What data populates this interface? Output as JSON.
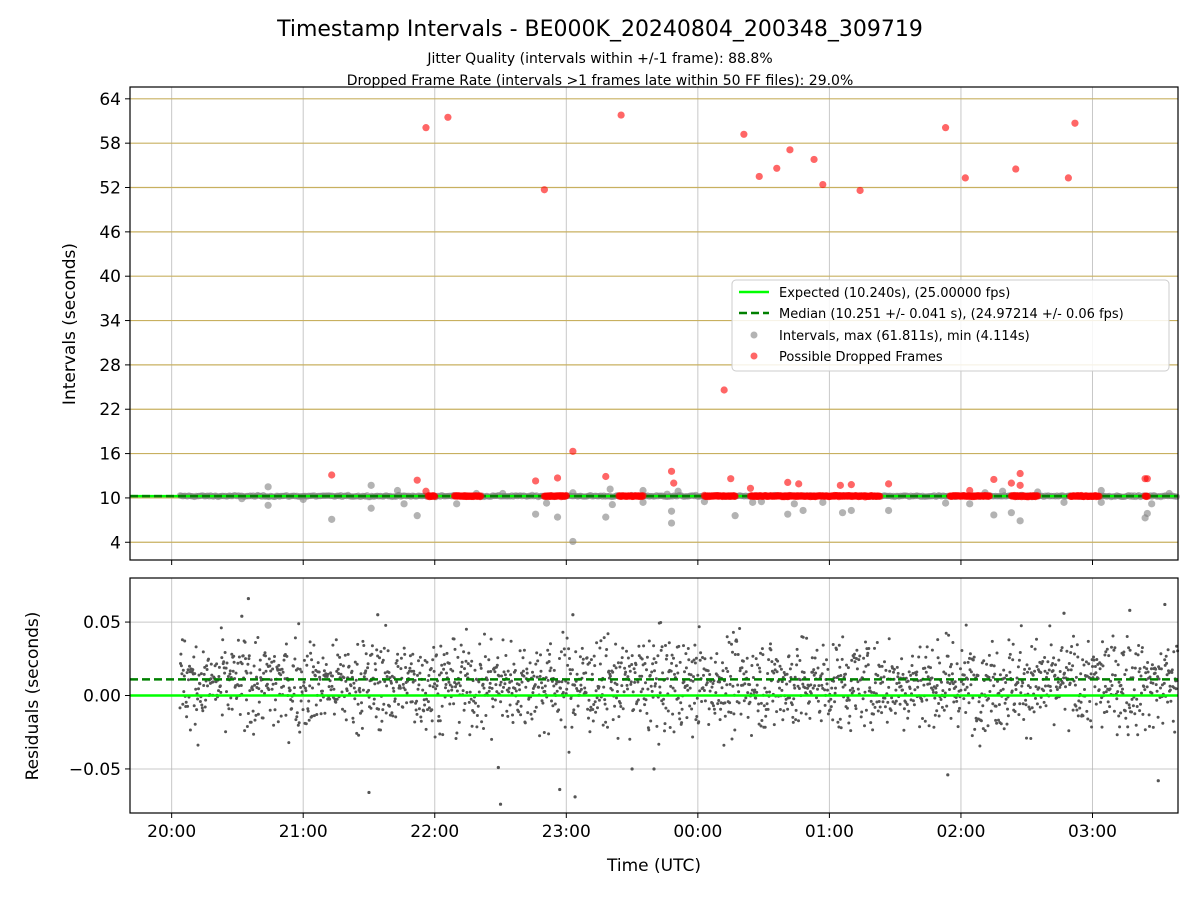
{
  "chart_data": {
    "title": "Timestamp Intervals - BE000K_20240804_200348_309719",
    "subtitle_1": "Jitter Quality (intervals within +/-1 frame): 88.8%",
    "subtitle_2": "Dropped Frame Rate (intervals >1 frames late within 50 FF files): 29.0%",
    "xlabel": "Time (UTC)",
    "x_range": [
      "2024-08-04T19:41",
      "2024-08-05T03:39"
    ],
    "x_ticks": [
      {
        "time": "2024-08-04T20:00",
        "label": "20:00"
      },
      {
        "time": "2024-08-04T21:00",
        "label": "21:00"
      },
      {
        "time": "2024-08-04T22:00",
        "label": "22:00"
      },
      {
        "time": "2024-08-04T23:00",
        "label": "23:00"
      },
      {
        "time": "2024-08-05T00:00",
        "label": "00:00"
      },
      {
        "time": "2024-08-05T01:00",
        "label": "01:00"
      },
      {
        "time": "2024-08-05T02:00",
        "label": "02:00"
      },
      {
        "time": "2024-08-05T03:00",
        "label": "03:00"
      }
    ],
    "top_panel": {
      "type": "scatter",
      "ylabel": "Intervals (seconds)",
      "ylim": [
        1.6,
        65.6
      ],
      "y_ticks": [
        4,
        10,
        16,
        22,
        28,
        34,
        40,
        46,
        52,
        58,
        64
      ],
      "expected_value": 10.24,
      "median_value": 10.251,
      "legend_position": "center-right",
      "legend": {
        "expected": "Expected (10.240s), (25.00000 fps)",
        "median": "Median (10.251 +/- 0.041 s), (24.97214 +/- 0.06 fps)",
        "intervals": "Intervals, max (61.811s), min (4.114s)",
        "dropped": "Possible Dropped Frames"
      },
      "dropped_band_ranges": [
        [
          "2024-08-04T21:57",
          "2024-08-04T22:00"
        ],
        [
          "2024-08-04T22:09",
          "2024-08-04T22:21"
        ],
        [
          "2024-08-04T22:50",
          "2024-08-04T23:00"
        ],
        [
          "2024-08-04T23:24",
          "2024-08-04T23:35"
        ],
        [
          "2024-08-05T00:03",
          "2024-08-05T00:17"
        ],
        [
          "2024-08-05T00:24",
          "2024-08-05T01:23"
        ],
        [
          "2024-08-05T01:55",
          "2024-08-05T02:13"
        ],
        [
          "2024-08-05T02:23",
          "2024-08-05T02:35"
        ],
        [
          "2024-08-05T02:50",
          "2024-08-05T03:03"
        ],
        [
          "2024-08-05T03:24",
          "2024-08-05T03:25"
        ]
      ],
      "dropped_points": [
        {
          "t": "2024-08-04T21:56",
          "v": 60.1
        },
        {
          "t": "2024-08-04T22:06",
          "v": 61.5
        },
        {
          "t": "2024-08-04T22:50",
          "v": 51.7
        },
        {
          "t": "2024-08-04T23:25",
          "v": 61.8
        },
        {
          "t": "2024-08-05T00:21",
          "v": 59.2
        },
        {
          "t": "2024-08-05T00:28",
          "v": 53.5
        },
        {
          "t": "2024-08-05T00:36",
          "v": 54.6
        },
        {
          "t": "2024-08-05T00:42",
          "v": 57.1
        },
        {
          "t": "2024-08-05T00:53",
          "v": 55.8
        },
        {
          "t": "2024-08-05T00:57",
          "v": 52.4
        },
        {
          "t": "2024-08-05T01:14",
          "v": 51.6
        },
        {
          "t": "2024-08-05T01:53",
          "v": 60.1
        },
        {
          "t": "2024-08-05T02:02",
          "v": 53.3
        },
        {
          "t": "2024-08-05T02:25",
          "v": 54.5
        },
        {
          "t": "2024-08-05T02:49",
          "v": 53.3
        },
        {
          "t": "2024-08-05T02:52",
          "v": 60.7
        },
        {
          "t": "2024-08-05T00:12",
          "v": 24.6
        },
        {
          "t": "2024-08-04T23:03",
          "v": 16.3
        },
        {
          "t": "2024-08-04T21:13",
          "v": 13.1
        },
        {
          "t": "2024-08-04T21:52",
          "v": 12.4
        },
        {
          "t": "2024-08-04T21:56",
          "v": 10.9
        },
        {
          "t": "2024-08-04T22:46",
          "v": 12.3
        },
        {
          "t": "2024-08-04T22:56",
          "v": 12.7
        },
        {
          "t": "2024-08-04T23:18",
          "v": 12.9
        },
        {
          "t": "2024-08-04T23:48",
          "v": 13.6
        },
        {
          "t": "2024-08-04T23:49",
          "v": 12.0
        },
        {
          "t": "2024-08-05T00:15",
          "v": 12.6
        },
        {
          "t": "2024-08-05T00:24",
          "v": 11.3
        },
        {
          "t": "2024-08-05T00:41",
          "v": 12.1
        },
        {
          "t": "2024-08-05T00:46",
          "v": 11.9
        },
        {
          "t": "2024-08-05T01:05",
          "v": 11.7
        },
        {
          "t": "2024-08-05T01:10",
          "v": 11.8
        },
        {
          "t": "2024-08-05T01:27",
          "v": 11.9
        },
        {
          "t": "2024-08-05T02:04",
          "v": 11.0
        },
        {
          "t": "2024-08-05T02:15",
          "v": 12.5
        },
        {
          "t": "2024-08-05T02:23",
          "v": 12.0
        },
        {
          "t": "2024-08-05T02:27",
          "v": 13.3
        },
        {
          "t": "2024-08-05T02:27",
          "v": 11.7
        },
        {
          "t": "2024-08-05T03:24",
          "v": 12.6
        },
        {
          "t": "2024-08-05T03:25",
          "v": 12.6
        }
      ],
      "interval_outliers": [
        {
          "t": "2024-08-04T20:32",
          "v": 9.9
        },
        {
          "t": "2024-08-04T20:44",
          "v": 11.5
        },
        {
          "t": "2024-08-04T20:44",
          "v": 9.0
        },
        {
          "t": "2024-08-04T21:00",
          "v": 9.8
        },
        {
          "t": "2024-08-04T21:13",
          "v": 7.1
        },
        {
          "t": "2024-08-04T21:31",
          "v": 11.7
        },
        {
          "t": "2024-08-04T21:31",
          "v": 8.6
        },
        {
          "t": "2024-08-04T21:43",
          "v": 11.0
        },
        {
          "t": "2024-08-04T21:46",
          "v": 9.2
        },
        {
          "t": "2024-08-04T21:52",
          "v": 7.6
        },
        {
          "t": "2024-08-04T22:10",
          "v": 9.2
        },
        {
          "t": "2024-08-04T22:19",
          "v": 10.6
        },
        {
          "t": "2024-08-04T22:31",
          "v": 10.6
        },
        {
          "t": "2024-08-04T22:46",
          "v": 7.8
        },
        {
          "t": "2024-08-04T22:51",
          "v": 9.3
        },
        {
          "t": "2024-08-04T22:56",
          "v": 7.4
        },
        {
          "t": "2024-08-04T23:03",
          "v": 4.114
        },
        {
          "t": "2024-08-04T23:03",
          "v": 10.7
        },
        {
          "t": "2024-08-04T23:18",
          "v": 7.4
        },
        {
          "t": "2024-08-04T23:20",
          "v": 11.2
        },
        {
          "t": "2024-08-04T23:21",
          "v": 9.1
        },
        {
          "t": "2024-08-04T23:35",
          "v": 11.0
        },
        {
          "t": "2024-08-04T23:35",
          "v": 9.4
        },
        {
          "t": "2024-08-04T23:46",
          "v": 10.5
        },
        {
          "t": "2024-08-04T23:48",
          "v": 6.6
        },
        {
          "t": "2024-08-04T23:48",
          "v": 8.2
        },
        {
          "t": "2024-08-04T23:51",
          "v": 10.9
        },
        {
          "t": "2024-08-05T00:03",
          "v": 9.5
        },
        {
          "t": "2024-08-05T00:17",
          "v": 7.6
        },
        {
          "t": "2024-08-05T00:25",
          "v": 9.4
        },
        {
          "t": "2024-08-05T00:29",
          "v": 9.5
        },
        {
          "t": "2024-08-05T00:41",
          "v": 7.8
        },
        {
          "t": "2024-08-05T00:44",
          "v": 9.2
        },
        {
          "t": "2024-08-05T00:48",
          "v": 8.3
        },
        {
          "t": "2024-08-05T00:57",
          "v": 9.4
        },
        {
          "t": "2024-08-05T01:06",
          "v": 8.0
        },
        {
          "t": "2024-08-05T01:10",
          "v": 8.3
        },
        {
          "t": "2024-08-05T01:27",
          "v": 8.3
        },
        {
          "t": "2024-08-05T01:53",
          "v": 9.3
        },
        {
          "t": "2024-08-05T02:04",
          "v": 9.2
        },
        {
          "t": "2024-08-05T02:11",
          "v": 10.7
        },
        {
          "t": "2024-08-05T02:15",
          "v": 7.7
        },
        {
          "t": "2024-08-05T02:19",
          "v": 10.9
        },
        {
          "t": "2024-08-05T02:23",
          "v": 8.0
        },
        {
          "t": "2024-08-05T02:27",
          "v": 6.9
        },
        {
          "t": "2024-08-05T02:35",
          "v": 10.8
        },
        {
          "t": "2024-08-05T02:47",
          "v": 9.4
        },
        {
          "t": "2024-08-05T03:04",
          "v": 11.0
        },
        {
          "t": "2024-08-05T03:04",
          "v": 9.4
        },
        {
          "t": "2024-08-05T03:24",
          "v": 7.3
        },
        {
          "t": "2024-08-05T03:25",
          "v": 7.9
        },
        {
          "t": "2024-08-05T03:27",
          "v": 9.2
        },
        {
          "t": "2024-08-05T03:35",
          "v": 10.6
        }
      ]
    },
    "bottom_panel": {
      "type": "scatter",
      "ylabel": "Residuals (seconds)",
      "ylim": [
        -0.08,
        0.08
      ],
      "y_ticks": [
        {
          "value": 0.05,
          "label": "0.05"
        },
        {
          "value": 0.0,
          "label": "0.00"
        },
        {
          "value": -0.05,
          "label": "−0.05"
        }
      ],
      "expected_residual": 0.0,
      "median_residual": 0.011,
      "residual_outliers": [
        {
          "t": "2024-08-04T20:32",
          "v": 0.054
        },
        {
          "t": "2024-08-04T20:35",
          "v": 0.066
        },
        {
          "t": "2024-08-04T21:30",
          "v": -0.066
        },
        {
          "t": "2024-08-04T21:34",
          "v": 0.055
        },
        {
          "t": "2024-08-04T22:29",
          "v": -0.049
        },
        {
          "t": "2024-08-04T22:30",
          "v": -0.074
        },
        {
          "t": "2024-08-04T22:57",
          "v": -0.064
        },
        {
          "t": "2024-08-04T23:04",
          "v": -0.069
        },
        {
          "t": "2024-08-04T23:03",
          "v": 0.055
        },
        {
          "t": "2024-08-04T23:30",
          "v": -0.05
        },
        {
          "t": "2024-08-04T23:40",
          "v": -0.05
        },
        {
          "t": "2024-08-05T01:54",
          "v": -0.054
        },
        {
          "t": "2024-08-05T02:47",
          "v": 0.056
        },
        {
          "t": "2024-08-05T03:17",
          "v": 0.058
        },
        {
          "t": "2024-08-05T03:30",
          "v": -0.058
        },
        {
          "t": "2024-08-05T03:33",
          "v": 0.062
        }
      ]
    },
    "colors": {
      "expected": "#00ff00",
      "median": "#008000",
      "intervals": "#808080",
      "dropped": "#ff0000",
      "hgrid": "#c8b060",
      "vgrid": "#b0b0b0",
      "residual": "#555555"
    }
  }
}
